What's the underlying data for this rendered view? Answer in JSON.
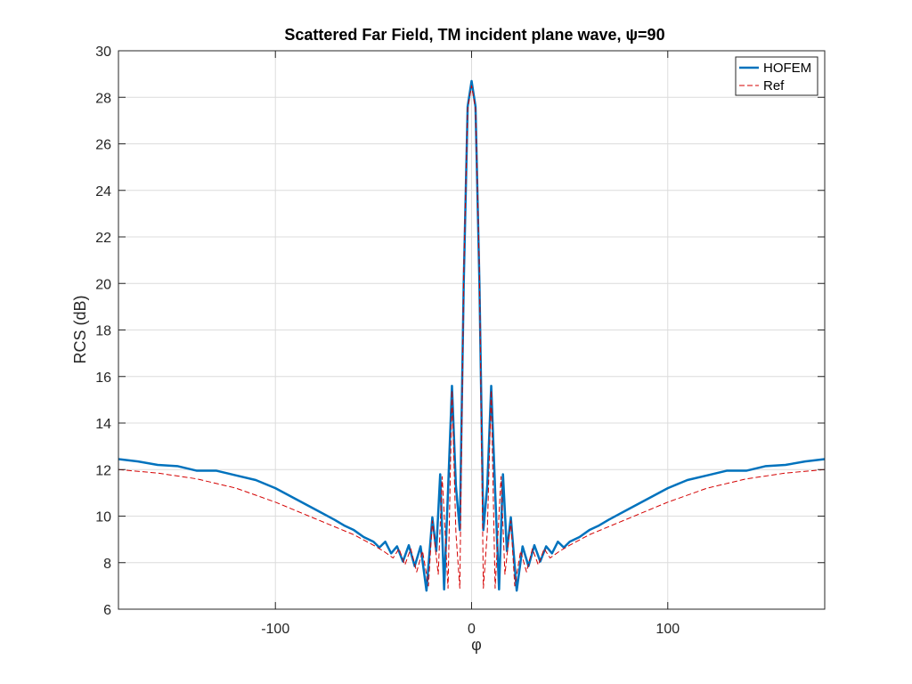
{
  "chart_data": {
    "type": "line",
    "title": "Scattered Far Field, TM incident plane wave, ψ=90",
    "xlabel": "φ",
    "ylabel": "RCS (dB)",
    "xlim": [
      -180,
      180
    ],
    "ylim": [
      6,
      30
    ],
    "xticks": [
      -100,
      0,
      100
    ],
    "yticks": [
      6,
      8,
      10,
      12,
      14,
      16,
      18,
      20,
      22,
      24,
      26,
      28,
      30
    ],
    "grid": true,
    "legend_position": "top-right",
    "series": [
      {
        "name": "HOFEM",
        "color": "#0072BD",
        "style": "solid",
        "points": [
          [
            -180,
            12.45
          ],
          [
            -170,
            12.35
          ],
          [
            -160,
            12.2
          ],
          [
            -150,
            12.15
          ],
          [
            -140,
            11.95
          ],
          [
            -130,
            11.95
          ],
          [
            -120,
            11.75
          ],
          [
            -110,
            11.55
          ],
          [
            -100,
            11.2
          ],
          [
            -90,
            10.75
          ],
          [
            -80,
            10.3
          ],
          [
            -70,
            9.85
          ],
          [
            -65,
            9.6
          ],
          [
            -60,
            9.4
          ],
          [
            -55,
            9.1
          ],
          [
            -50,
            8.9
          ],
          [
            -47,
            8.65
          ],
          [
            -44,
            8.9
          ],
          [
            -41,
            8.4
          ],
          [
            -38,
            8.7
          ],
          [
            -35,
            8.05
          ],
          [
            -32,
            8.75
          ],
          [
            -29,
            7.85
          ],
          [
            -26,
            8.7
          ],
          [
            -23,
            6.8
          ],
          [
            -20,
            9.95
          ],
          [
            -18,
            8.5
          ],
          [
            -16,
            11.8
          ],
          [
            -14,
            6.85
          ],
          [
            -12,
            11.1
          ],
          [
            -10,
            15.6
          ],
          [
            -8,
            11.3
          ],
          [
            -6,
            9.4
          ],
          [
            -4,
            20.0
          ],
          [
            -2,
            27.6
          ],
          [
            0,
            28.7
          ],
          [
            2,
            27.6
          ],
          [
            4,
            20.0
          ],
          [
            6,
            9.4
          ],
          [
            8,
            11.3
          ],
          [
            10,
            15.6
          ],
          [
            12,
            11.1
          ],
          [
            14,
            6.85
          ],
          [
            16,
            11.8
          ],
          [
            18,
            8.5
          ],
          [
            20,
            9.95
          ],
          [
            23,
            6.8
          ],
          [
            26,
            8.7
          ],
          [
            29,
            7.85
          ],
          [
            32,
            8.75
          ],
          [
            35,
            8.05
          ],
          [
            38,
            8.7
          ],
          [
            41,
            8.4
          ],
          [
            44,
            8.9
          ],
          [
            47,
            8.65
          ],
          [
            50,
            8.9
          ],
          [
            55,
            9.1
          ],
          [
            60,
            9.4
          ],
          [
            65,
            9.6
          ],
          [
            70,
            9.85
          ],
          [
            80,
            10.3
          ],
          [
            90,
            10.75
          ],
          [
            100,
            11.2
          ],
          [
            110,
            11.55
          ],
          [
            120,
            11.75
          ],
          [
            130,
            11.95
          ],
          [
            140,
            11.95
          ],
          [
            150,
            12.15
          ],
          [
            160,
            12.2
          ],
          [
            170,
            12.35
          ],
          [
            180,
            12.45
          ]
        ]
      },
      {
        "name": "Ref",
        "color": "#D40000",
        "style": "dashed",
        "points": [
          [
            -180,
            12.0
          ],
          [
            -160,
            11.85
          ],
          [
            -140,
            11.6
          ],
          [
            -120,
            11.2
          ],
          [
            -100,
            10.6
          ],
          [
            -80,
            9.9
          ],
          [
            -60,
            9.2
          ],
          [
            -50,
            8.75
          ],
          [
            -45,
            8.5
          ],
          [
            -40,
            8.2
          ],
          [
            -37,
            8.6
          ],
          [
            -34,
            7.9
          ],
          [
            -31,
            8.6
          ],
          [
            -28,
            7.6
          ],
          [
            -25,
            8.5
          ],
          [
            -22,
            7.0
          ],
          [
            -20,
            9.8
          ],
          [
            -17,
            7.5
          ],
          [
            -15,
            11.7
          ],
          [
            -12,
            6.9
          ],
          [
            -10,
            15.4
          ],
          [
            -8,
            9.3
          ],
          [
            -6,
            6.9
          ],
          [
            -4,
            20.5
          ],
          [
            -2,
            27.5
          ],
          [
            0,
            28.5
          ],
          [
            2,
            27.5
          ],
          [
            4,
            20.5
          ],
          [
            6,
            6.9
          ],
          [
            8,
            9.3
          ],
          [
            10,
            15.4
          ],
          [
            12,
            6.9
          ],
          [
            15,
            11.7
          ],
          [
            17,
            7.5
          ],
          [
            20,
            9.8
          ],
          [
            22,
            7.0
          ],
          [
            25,
            8.5
          ],
          [
            28,
            7.6
          ],
          [
            31,
            8.6
          ],
          [
            34,
            7.9
          ],
          [
            37,
            8.6
          ],
          [
            40,
            8.2
          ],
          [
            45,
            8.5
          ],
          [
            50,
            8.75
          ],
          [
            60,
            9.2
          ],
          [
            80,
            9.9
          ],
          [
            100,
            10.6
          ],
          [
            120,
            11.2
          ],
          [
            140,
            11.6
          ],
          [
            160,
            11.85
          ],
          [
            180,
            12.0
          ]
        ]
      }
    ]
  }
}
